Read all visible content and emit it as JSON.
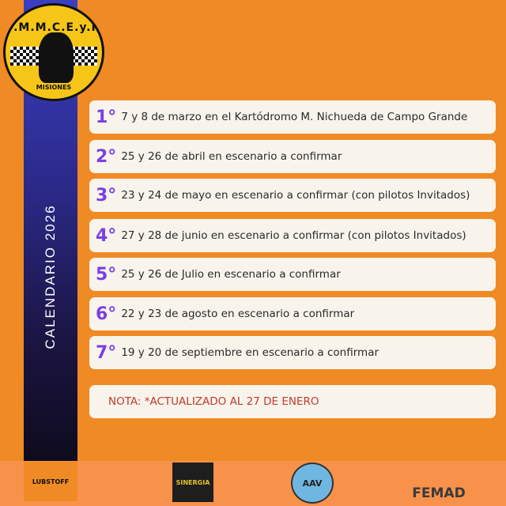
{
  "logo": {
    "top_text": "F.M.M.C.E.y.K",
    "bottom_text": "MISIONES"
  },
  "sidebar": {
    "title": "CALENDARIO 2026"
  },
  "events": [
    {
      "num": "1°",
      "text": "7 y 8 de marzo en el Kartódromo M. Nichueda de Campo Grande"
    },
    {
      "num": "2°",
      "text": "25 y 26 de abril en escenario a confirmar"
    },
    {
      "num": "3°",
      "text": "23 y 24 de mayo en escenario a confirmar (con pilotos Invitados)"
    },
    {
      "num": "4°",
      "text": "27 y 28 de junio en escenario a confirmar (con pilotos Invitados)"
    },
    {
      "num": "5°",
      "text": "25 y 26 de Julio en escenario a confirmar"
    },
    {
      "num": "6°",
      "text": "22 y 23 de agosto en escenario a confirmar"
    },
    {
      "num": "7°",
      "text": "19 y 20 de septiembre en escenario a confirmar"
    }
  ],
  "note": "NOTA: *ACTUALIZADO AL 27 DE ENERO",
  "sponsors": [
    "LUBSTOFF",
    "SINERGIA",
    "AAV",
    "FEMAD"
  ],
  "colors": {
    "background": "#f08a24",
    "number": "#7b3fe4",
    "card": "#f8f4ec",
    "note": "#c0392b"
  }
}
